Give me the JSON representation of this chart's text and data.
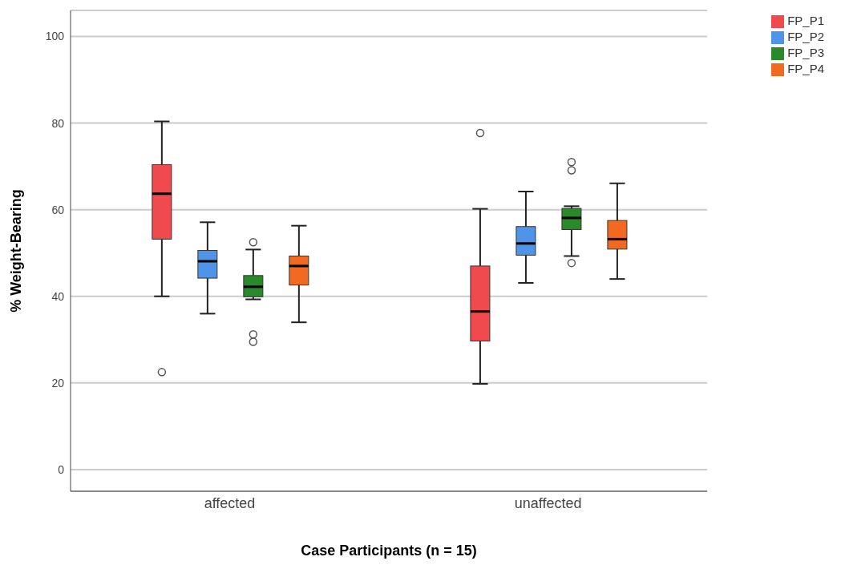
{
  "chart_data": {
    "type": "box",
    "xlabel": "Case Participants (n = 15)",
    "ylabel": "% Weight-Bearing",
    "categories": [
      "affected",
      "unaffected"
    ],
    "ylim": [
      -5,
      106
    ],
    "yticks": [
      0,
      20,
      40,
      60,
      80,
      100
    ],
    "grid": "y",
    "legend": "top right",
    "series": [
      {
        "name": "FP_P1",
        "color": "#f04a4f",
        "boxes": [
          {
            "low": 40.0,
            "q1": 53.2,
            "median": 63.7,
            "q3": 70.4,
            "high": 80.4,
            "outliers": [
              22.5
            ]
          },
          {
            "low": 19.8,
            "q1": 29.7,
            "median": 36.5,
            "q3": 47.0,
            "high": 60.2,
            "outliers": [
              77.7
            ]
          }
        ]
      },
      {
        "name": "FP_P2",
        "color": "#4f94e8",
        "boxes": [
          {
            "low": 36.0,
            "q1": 44.2,
            "median": 48.1,
            "q3": 50.6,
            "high": 57.1
          },
          {
            "low": 43.1,
            "q1": 49.5,
            "median": 52.2,
            "q3": 56.1,
            "high": 64.2
          }
        ]
      },
      {
        "name": "FP_P3",
        "color": "#2a8a2a",
        "boxes": [
          {
            "low": 39.3,
            "q1": 39.9,
            "median": 42.2,
            "q3": 44.8,
            "high": 50.8,
            "outliers": [
              52.5,
              31.2,
              29.5
            ]
          },
          {
            "low": 49.3,
            "q1": 55.4,
            "median": 58.1,
            "q3": 60.3,
            "high": 60.8,
            "outliers": [
              71.0,
              69.1,
              47.7
            ]
          }
        ]
      },
      {
        "name": "FP_P4",
        "color": "#f26a21",
        "boxes": [
          {
            "low": 34.0,
            "q1": 42.6,
            "median": 47.0,
            "q3": 49.3,
            "high": 56.3
          },
          {
            "low": 44.0,
            "q1": 50.9,
            "median": 53.2,
            "q3": 57.5,
            "high": 66.1
          }
        ]
      }
    ]
  }
}
